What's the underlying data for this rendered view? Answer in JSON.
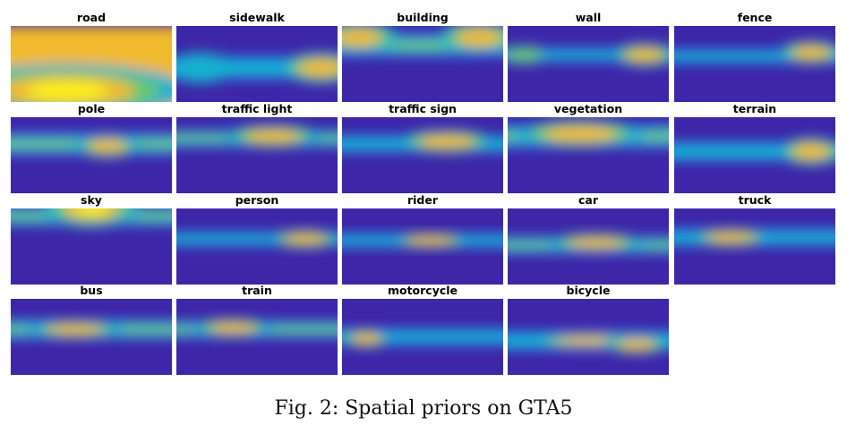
{
  "figure": {
    "colormap": [
      "#3e26a8",
      "#2c6ff5",
      "#12b0cf",
      "#67c66f",
      "#f1b92f",
      "#fbf21a"
    ],
    "panels": [
      {
        "label": "road",
        "prior": "road"
      },
      {
        "label": "sidewalk",
        "prior": "sidewalk"
      },
      {
        "label": "building",
        "prior": "building"
      },
      {
        "label": "wall",
        "prior": "wall"
      },
      {
        "label": "fence",
        "prior": "fence"
      },
      {
        "label": "pole",
        "prior": "pole"
      },
      {
        "label": "traffic light",
        "prior": "traffic-light"
      },
      {
        "label": "traffic sign",
        "prior": "traffic-sign"
      },
      {
        "label": "vegetation",
        "prior": "vegetation"
      },
      {
        "label": "terrain",
        "prior": "terrain"
      },
      {
        "label": "sky",
        "prior": "sky"
      },
      {
        "label": "person",
        "prior": "person"
      },
      {
        "label": "rider",
        "prior": "rider"
      },
      {
        "label": "car",
        "prior": "car"
      },
      {
        "label": "truck",
        "prior": "truck"
      },
      {
        "label": "bus",
        "prior": "bus"
      },
      {
        "label": "train",
        "prior": "train"
      },
      {
        "label": "motorcycle",
        "prior": "motorcycle"
      },
      {
        "label": "bicycle",
        "prior": "bicycle"
      }
    ]
  },
  "caption": "Fig. 2: Spatial priors on GTA5"
}
